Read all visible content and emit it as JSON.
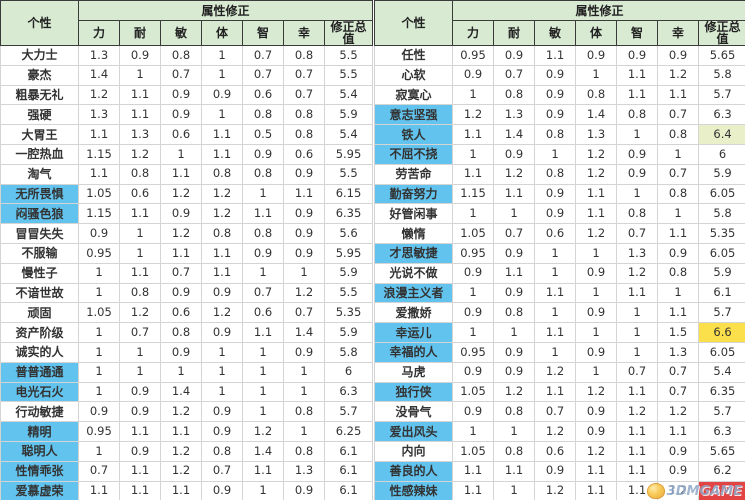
{
  "columns": {
    "personality": "个性",
    "modifier_group": "属性修正",
    "attrs": [
      "力",
      "耐",
      "敏",
      "体",
      "智",
      "幸"
    ],
    "total": "修正总值"
  },
  "left_table": {
    "rows": [
      {
        "name": "大力士",
        "values": [
          "1.3",
          "0.9",
          "0.8",
          "1",
          "0.7",
          "0.8"
        ],
        "total": "5.5",
        "highlight": false,
        "total_style": null
      },
      {
        "name": "豪杰",
        "values": [
          "1.4",
          "1",
          "0.7",
          "1",
          "0.7",
          "0.7"
        ],
        "total": "5.5",
        "highlight": false,
        "total_style": null
      },
      {
        "name": "粗暴无礼",
        "values": [
          "1.2",
          "1.1",
          "0.9",
          "0.9",
          "0.6",
          "0.7"
        ],
        "total": "5.4",
        "highlight": false,
        "total_style": null
      },
      {
        "name": "强硬",
        "values": [
          "1.3",
          "1.1",
          "0.9",
          "1",
          "0.8",
          "0.8"
        ],
        "total": "5.9",
        "highlight": false,
        "total_style": null
      },
      {
        "name": "大胃王",
        "values": [
          "1.1",
          "1.3",
          "0.6",
          "1.1",
          "0.5",
          "0.8"
        ],
        "total": "5.4",
        "highlight": false,
        "total_style": null
      },
      {
        "name": "一腔热血",
        "values": [
          "1.15",
          "1.2",
          "1",
          "1.1",
          "0.9",
          "0.6"
        ],
        "total": "5.95",
        "highlight": false,
        "total_style": null
      },
      {
        "name": "淘气",
        "values": [
          "1.1",
          "0.8",
          "1.1",
          "0.8",
          "0.8",
          "0.9"
        ],
        "total": "5.5",
        "highlight": false,
        "total_style": null
      },
      {
        "name": "无所畏惧",
        "values": [
          "1.05",
          "0.6",
          "1.2",
          "1.2",
          "1",
          "1.1"
        ],
        "total": "6.15",
        "highlight": true,
        "total_style": null
      },
      {
        "name": "闷骚色狼",
        "values": [
          "1.15",
          "1.1",
          "0.9",
          "1.2",
          "1.1",
          "0.9"
        ],
        "total": "6.35",
        "highlight": true,
        "total_style": null
      },
      {
        "name": "冒冒失失",
        "values": [
          "0.9",
          "1",
          "1.2",
          "0.8",
          "0.8",
          "0.9"
        ],
        "total": "5.6",
        "highlight": false,
        "total_style": null
      },
      {
        "name": "不服输",
        "values": [
          "0.95",
          "1",
          "1.1",
          "1.1",
          "0.9",
          "0.9"
        ],
        "total": "5.95",
        "highlight": false,
        "total_style": null
      },
      {
        "name": "慢性子",
        "values": [
          "1",
          "1.1",
          "0.7",
          "1.1",
          "1",
          "1"
        ],
        "total": "5.9",
        "highlight": false,
        "total_style": null
      },
      {
        "name": "不谙世故",
        "values": [
          "1",
          "0.8",
          "0.9",
          "0.9",
          "0.7",
          "1.2"
        ],
        "total": "5.5",
        "highlight": false,
        "total_style": null
      },
      {
        "name": "顽固",
        "values": [
          "1.05",
          "1.2",
          "0.6",
          "1.2",
          "0.6",
          "0.7"
        ],
        "total": "5.35",
        "highlight": false,
        "total_style": null
      },
      {
        "name": "资产阶级",
        "values": [
          "1",
          "0.7",
          "0.8",
          "0.9",
          "1.1",
          "1.4"
        ],
        "total": "5.9",
        "highlight": false,
        "total_style": null
      },
      {
        "name": "诚实的人",
        "values": [
          "1",
          "1",
          "0.9",
          "1",
          "1",
          "0.9"
        ],
        "total": "5.8",
        "highlight": false,
        "total_style": null
      },
      {
        "name": "普普通通",
        "values": [
          "1",
          "1",
          "1",
          "1",
          "1",
          "1"
        ],
        "total": "6",
        "highlight": true,
        "total_style": null
      },
      {
        "name": "电光石火",
        "values": [
          "1",
          "0.9",
          "1.4",
          "1",
          "1",
          "1"
        ],
        "total": "6.3",
        "highlight": true,
        "total_style": null
      },
      {
        "name": "行动敏捷",
        "values": [
          "0.9",
          "0.9",
          "1.2",
          "0.9",
          "1",
          "0.8"
        ],
        "total": "5.7",
        "highlight": false,
        "total_style": null
      },
      {
        "name": "精明",
        "values": [
          "0.95",
          "1.1",
          "1.1",
          "0.9",
          "1.2",
          "1"
        ],
        "total": "6.25",
        "highlight": true,
        "total_style": null
      },
      {
        "name": "聪明人",
        "values": [
          "1",
          "0.9",
          "1.2",
          "0.8",
          "1.4",
          "0.8"
        ],
        "total": "6.1",
        "highlight": true,
        "total_style": null
      },
      {
        "name": "性情乖张",
        "values": [
          "0.7",
          "1.1",
          "1.2",
          "0.7",
          "1.1",
          "1.3"
        ],
        "total": "6.1",
        "highlight": true,
        "total_style": null
      },
      {
        "name": "爱慕虚荣",
        "values": [
          "1.1",
          "1.1",
          "1.1",
          "0.9",
          "1",
          "0.9"
        ],
        "total": "6.1",
        "highlight": true,
        "total_style": null
      }
    ]
  },
  "right_table": {
    "rows": [
      {
        "name": "任性",
        "values": [
          "0.95",
          "0.9",
          "1.1",
          "0.9",
          "0.9",
          "0.9"
        ],
        "total": "5.65",
        "highlight": false,
        "total_style": null
      },
      {
        "name": "心软",
        "values": [
          "0.9",
          "0.7",
          "0.9",
          "1",
          "1.1",
          "1.2"
        ],
        "total": "5.8",
        "highlight": false,
        "total_style": null
      },
      {
        "name": "寂寞心",
        "values": [
          "1",
          "0.8",
          "0.9",
          "0.8",
          "1.1",
          "1.1"
        ],
        "total": "5.7",
        "highlight": false,
        "total_style": null
      },
      {
        "name": "意志坚强",
        "values": [
          "1.2",
          "1.3",
          "0.9",
          "1.4",
          "0.8",
          "0.7"
        ],
        "total": "6.3",
        "highlight": true,
        "total_style": null
      },
      {
        "name": "铁人",
        "values": [
          "1.1",
          "1.4",
          "0.8",
          "1.3",
          "1",
          "0.8"
        ],
        "total": "6.4",
        "highlight": true,
        "total_style": "green"
      },
      {
        "name": "不屈不挠",
        "values": [
          "1",
          "0.9",
          "1",
          "1.2",
          "0.9",
          "1"
        ],
        "total": "6",
        "highlight": true,
        "total_style": null
      },
      {
        "name": "劳苦命",
        "values": [
          "1.1",
          "1.2",
          "0.8",
          "1.2",
          "0.9",
          "0.7"
        ],
        "total": "5.9",
        "highlight": false,
        "total_style": null
      },
      {
        "name": "勤奋努力",
        "values": [
          "1.15",
          "1.1",
          "0.9",
          "1.1",
          "1",
          "0.8"
        ],
        "total": "6.05",
        "highlight": true,
        "total_style": null
      },
      {
        "name": "好管闲事",
        "values": [
          "1",
          "1",
          "0.9",
          "1.1",
          "0.8",
          "1"
        ],
        "total": "5.8",
        "highlight": false,
        "total_style": null
      },
      {
        "name": "懒惰",
        "values": [
          "1.05",
          "0.7",
          "0.6",
          "1.2",
          "0.7",
          "1.1"
        ],
        "total": "5.35",
        "highlight": false,
        "total_style": null
      },
      {
        "name": "才思敏捷",
        "values": [
          "0.95",
          "0.9",
          "1",
          "1",
          "1.3",
          "0.9"
        ],
        "total": "6.05",
        "highlight": true,
        "total_style": null
      },
      {
        "name": "光说不做",
        "values": [
          "0.9",
          "1.1",
          "1",
          "0.9",
          "1.2",
          "0.8"
        ],
        "total": "5.9",
        "highlight": false,
        "total_style": null
      },
      {
        "name": "浪漫主义者",
        "values": [
          "1",
          "0.9",
          "1.1",
          "1",
          "1.1",
          "1"
        ],
        "total": "6.1",
        "highlight": true,
        "total_style": null
      },
      {
        "name": "爱撒娇",
        "values": [
          "0.9",
          "0.8",
          "1",
          "0.9",
          "1",
          "1.1"
        ],
        "total": "5.7",
        "highlight": false,
        "total_style": null
      },
      {
        "name": "幸运儿",
        "values": [
          "1",
          "1",
          "1.1",
          "1",
          "1",
          "1.5"
        ],
        "total": "6.6",
        "highlight": true,
        "total_style": "yellow"
      },
      {
        "name": "幸福的人",
        "values": [
          "0.95",
          "0.9",
          "1",
          "0.9",
          "1",
          "1.3"
        ],
        "total": "6.05",
        "highlight": true,
        "total_style": null
      },
      {
        "name": "马虎",
        "values": [
          "0.9",
          "0.9",
          "1.2",
          "1",
          "0.7",
          "0.7"
        ],
        "total": "5.4",
        "highlight": false,
        "total_style": null
      },
      {
        "name": "独行侠",
        "values": [
          "1.05",
          "1.2",
          "1.1",
          "1.2",
          "1.1",
          "0.7"
        ],
        "total": "6.35",
        "highlight": true,
        "total_style": null
      },
      {
        "name": "没骨气",
        "values": [
          "0.9",
          "0.8",
          "0.7",
          "0.9",
          "1.2",
          "1.2"
        ],
        "total": "5.7",
        "highlight": false,
        "total_style": null
      },
      {
        "name": "爱出风头",
        "values": [
          "1",
          "1",
          "1.2",
          "0.9",
          "1.1",
          "1.1"
        ],
        "total": "6.3",
        "highlight": true,
        "total_style": null
      },
      {
        "name": "内向",
        "values": [
          "1.05",
          "0.8",
          "0.6",
          "1.2",
          "1.1",
          "0.9"
        ],
        "total": "5.65",
        "highlight": false,
        "total_style": null
      },
      {
        "name": "善良的人",
        "values": [
          "1.1",
          "1.1",
          "0.9",
          "1.1",
          "1.1",
          "0.9"
        ],
        "total": "6.2",
        "highlight": true,
        "total_style": null
      },
      {
        "name": "性感辣妹",
        "values": [
          "1.1",
          "1",
          "1.2",
          "1.1",
          "1.1",
          "1.2"
        ],
        "total": "6.7",
        "highlight": true,
        "total_style": "red"
      }
    ]
  },
  "watermark": {
    "text": "3DMGAME"
  },
  "colors": {
    "header_bg": "#d9ead3",
    "header_border": "#3b3b3b",
    "grid_border": "#d4d4d4",
    "highlight_blue": "#62c4ee",
    "total_green_bg": "#e9efc8",
    "total_yellow_bg": "#fbdf4b",
    "total_red_bg": "#e24444",
    "text": "#333333"
  }
}
